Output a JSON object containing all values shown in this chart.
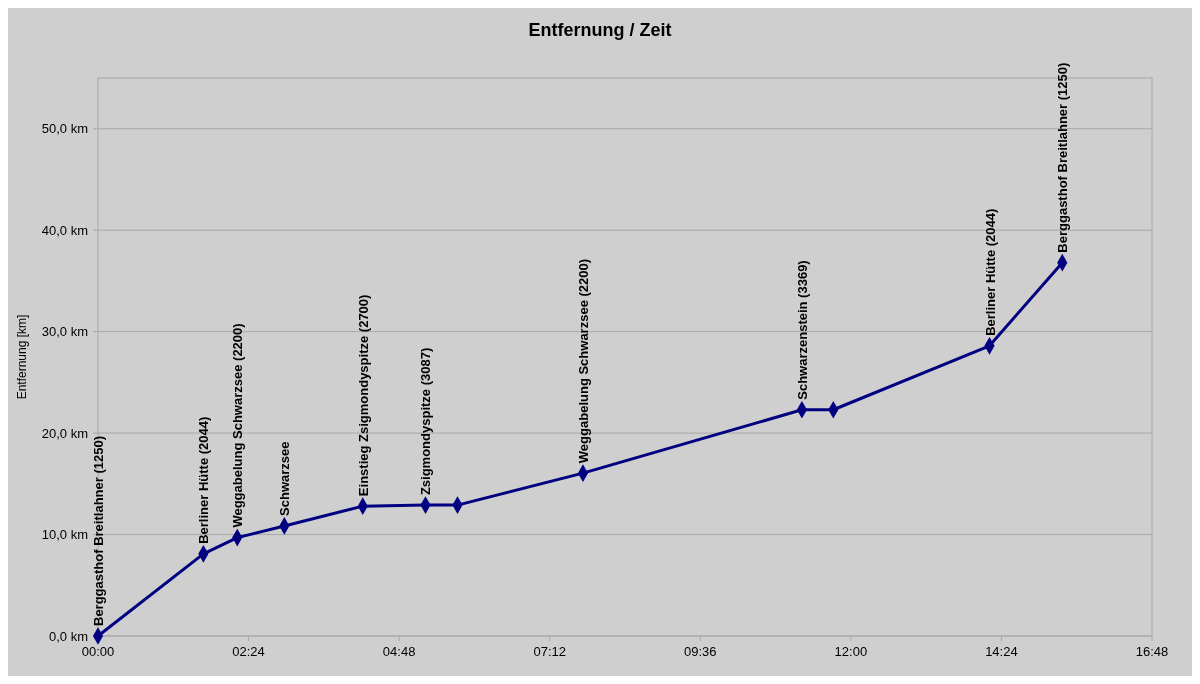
{
  "chart_data": {
    "type": "line",
    "title": "Entfernung / Zeit",
    "ylabel": "Entfernung [km]",
    "x": [
      0,
      1.68,
      2.22,
      2.97,
      4.22,
      5.22,
      5.73,
      7.73,
      11.22,
      11.72,
      14.21,
      15.37
    ],
    "series": [
      {
        "color": "#000080",
        "values": [
          0,
          8.1,
          9.7,
          10.85,
          12.8,
          12.9,
          12.9,
          16.05,
          22.3,
          22.3,
          28.6,
          36.8
        ]
      }
    ],
    "xlim": [
      0,
      16.8
    ],
    "xticks": [
      {
        "value": 0,
        "label": "00:00"
      },
      {
        "value": 2.4,
        "label": "02:24"
      },
      {
        "value": 4.8,
        "label": "04:48"
      },
      {
        "value": 7.2,
        "label": "07:12"
      },
      {
        "value": 9.6,
        "label": "09:36"
      },
      {
        "value": 12,
        "label": "12:00"
      },
      {
        "value": 14.4,
        "label": "14:24"
      },
      {
        "value": 16.8,
        "label": "16:48"
      }
    ],
    "ylim": [
      0,
      55
    ],
    "yticks": [
      {
        "value": 0,
        "label": "0,0 km"
      },
      {
        "value": 10,
        "label": "10,0 km"
      },
      {
        "value": 20,
        "label": "20,0 km"
      },
      {
        "value": 30,
        "label": "30,0 km"
      },
      {
        "value": 40,
        "label": "40,0 km"
      },
      {
        "value": 50,
        "label": "50,0 km"
      }
    ],
    "grid": "y",
    "marker": "diamond",
    "line_style": "solid",
    "annotations": [
      {
        "text": "Berggasthof Breitlahner (1250)",
        "x": 0,
        "y": 0
      },
      {
        "text": "Berliner Hütte (2044)",
        "x": 1.68,
        "y": 8.1
      },
      {
        "text": "Weggabelung Schwarzsee (2200)",
        "x": 2.22,
        "y": 9.7
      },
      {
        "text": "Schwarzsee",
        "x": 2.97,
        "y": 10.85
      },
      {
        "text": "Einstieg Zsigmondyspitze (2700)",
        "x": 4.22,
        "y": 12.8
      },
      {
        "text": "Zsigmondyspitze (3087)",
        "x": 5.22,
        "y": 12.9
      },
      {
        "text": "Weggabelung Schwarzsee (2200)",
        "x": 7.73,
        "y": 16.05
      },
      {
        "text": "Schwarzenstein (3369)",
        "x": 11.22,
        "y": 22.3
      },
      {
        "text": "Berliner Hütte (2044)",
        "x": 14.21,
        "y": 28.6
      },
      {
        "text": "Berggasthof Breitlahner (1250)",
        "x": 15.37,
        "y": 36.8
      }
    ]
  }
}
